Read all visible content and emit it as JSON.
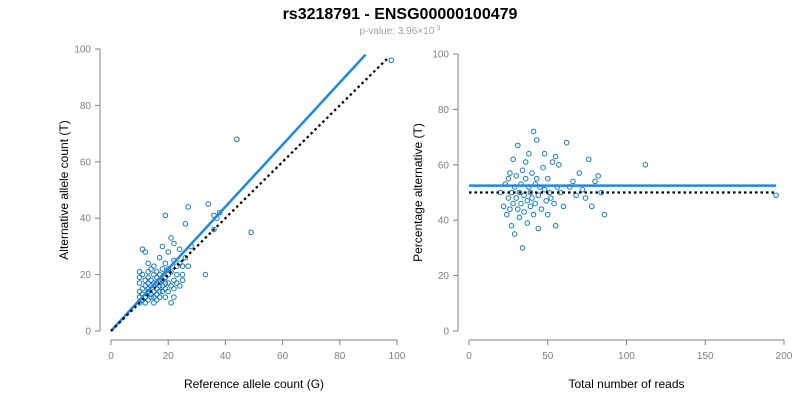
{
  "title": "rs3218791 - ENSG00000100479",
  "subtitle": {
    "prefix": "p-value: 3.96×10",
    "exponent": "-3"
  },
  "colors": {
    "points": "#1a7ab8",
    "fit_line": "#1e88e5",
    "reference_line": "#000000",
    "axis": "#7f7f7f"
  },
  "chart_data": [
    {
      "type": "scatter",
      "xlabel": "Reference allele count (G)",
      "ylabel": "Alternative allele count (T)",
      "xlim": [
        0,
        100
      ],
      "ylim": [
        0,
        100
      ],
      "xticks": [
        0,
        20,
        40,
        60,
        80,
        100
      ],
      "yticks": [
        0,
        20,
        40,
        60,
        80,
        100
      ],
      "grid": false,
      "fit_line": {
        "x": [
          0,
          89
        ],
        "y": [
          0,
          98
        ]
      },
      "reference_line": {
        "x": [
          0,
          97
        ],
        "y": [
          0,
          97
        ]
      },
      "points": [
        [
          10,
          10
        ],
        [
          10,
          12
        ],
        [
          10,
          14
        ],
        [
          10,
          17
        ],
        [
          10,
          19
        ],
        [
          10,
          21
        ],
        [
          11,
          11
        ],
        [
          11,
          13
        ],
        [
          11,
          15
        ],
        [
          11,
          20
        ],
        [
          11,
          29
        ],
        [
          12,
          10
        ],
        [
          12,
          12
        ],
        [
          12,
          16
        ],
        [
          12,
          18
        ],
        [
          12,
          28
        ],
        [
          13,
          11
        ],
        [
          13,
          14
        ],
        [
          13,
          15
        ],
        [
          13,
          17
        ],
        [
          13,
          19
        ],
        [
          13,
          21
        ],
        [
          13,
          24
        ],
        [
          14,
          12
        ],
        [
          14,
          13
        ],
        [
          14,
          16
        ],
        [
          14,
          18
        ],
        [
          14,
          22
        ],
        [
          15,
          10
        ],
        [
          15,
          12
        ],
        [
          15,
          14
        ],
        [
          15,
          17
        ],
        [
          15,
          20
        ],
        [
          15,
          23
        ],
        [
          16,
          11
        ],
        [
          16,
          13
        ],
        [
          16,
          15
        ],
        [
          16,
          17
        ],
        [
          16,
          19
        ],
        [
          16,
          21
        ],
        [
          17,
          12
        ],
        [
          17,
          14
        ],
        [
          17,
          16
        ],
        [
          17,
          18
        ],
        [
          17,
          20
        ],
        [
          17,
          26
        ],
        [
          18,
          14
        ],
        [
          18,
          16
        ],
        [
          18,
          18
        ],
        [
          18,
          22
        ],
        [
          18,
          30
        ],
        [
          19,
          12
        ],
        [
          19,
          15
        ],
        [
          19,
          17
        ],
        [
          19,
          19
        ],
        [
          19,
          24
        ],
        [
          19,
          41
        ],
        [
          20,
          14
        ],
        [
          20,
          17
        ],
        [
          20,
          20
        ],
        [
          20,
          22
        ],
        [
          20,
          28
        ],
        [
          21,
          10
        ],
        [
          21,
          16
        ],
        [
          21,
          21
        ],
        [
          21,
          33
        ],
        [
          22,
          12
        ],
        [
          22,
          15
        ],
        [
          22,
          18
        ],
        [
          22,
          25
        ],
        [
          22,
          31
        ],
        [
          23,
          17
        ],
        [
          23,
          20
        ],
        [
          23,
          23
        ],
        [
          24,
          16
        ],
        [
          24,
          24
        ],
        [
          24,
          29
        ],
        [
          25,
          18
        ],
        [
          25,
          20
        ],
        [
          25,
          23
        ],
        [
          26,
          26
        ],
        [
          26,
          38
        ],
        [
          27,
          23
        ],
        [
          27,
          44
        ],
        [
          28,
          30
        ],
        [
          33,
          20
        ],
        [
          34,
          45
        ],
        [
          36,
          36
        ],
        [
          36,
          41
        ],
        [
          37,
          40
        ],
        [
          38,
          42
        ],
        [
          44,
          68
        ],
        [
          49,
          35
        ],
        [
          98,
          96
        ]
      ]
    },
    {
      "type": "scatter",
      "xlabel": "Total number of reads",
      "ylabel": "Percentage alternative (T)",
      "xlim": [
        0,
        200
      ],
      "ylim": [
        0,
        100
      ],
      "xticks": [
        0,
        50,
        100,
        150,
        200
      ],
      "yticks": [
        0,
        20,
        40,
        60,
        80,
        100
      ],
      "grid": false,
      "fit_line": {
        "x": [
          0,
          195
        ],
        "y": [
          52.5,
          52.5
        ]
      },
      "reference_line": {
        "x": [
          0,
          195
        ],
        "y": [
          50,
          50
        ]
      },
      "points": [
        [
          20,
          50
        ],
        [
          22,
          45
        ],
        [
          23,
          53
        ],
        [
          24,
          42
        ],
        [
          25,
          48
        ],
        [
          25,
          55
        ],
        [
          26,
          57
        ],
        [
          26,
          44
        ],
        [
          27,
          50
        ],
        [
          27,
          38
        ],
        [
          28,
          46
        ],
        [
          28,
          62
        ],
        [
          29,
          52
        ],
        [
          29,
          35
        ],
        [
          30,
          48
        ],
        [
          30,
          56
        ],
        [
          31,
          44
        ],
        [
          31,
          67
        ],
        [
          32,
          50
        ],
        [
          32,
          41
        ],
        [
          33,
          53
        ],
        [
          33,
          46
        ],
        [
          34,
          30
        ],
        [
          34,
          58
        ],
        [
          35,
          49
        ],
        [
          35,
          43
        ],
        [
          36,
          55
        ],
        [
          36,
          61
        ],
        [
          37,
          47
        ],
        [
          37,
          39
        ],
        [
          38,
          52
        ],
        [
          38,
          64
        ],
        [
          39,
          45
        ],
        [
          39,
          50
        ],
        [
          40,
          48
        ],
        [
          40,
          57
        ],
        [
          41,
          72
        ],
        [
          41,
          42
        ],
        [
          42,
          53
        ],
        [
          42,
          46
        ],
        [
          43,
          69
        ],
        [
          43,
          55
        ],
        [
          44,
          49
        ],
        [
          44,
          37
        ],
        [
          45,
          52
        ],
        [
          46,
          44
        ],
        [
          47,
          59
        ],
        [
          48,
          51
        ],
        [
          48,
          64
        ],
        [
          49,
          47
        ],
        [
          50,
          55
        ],
        [
          50,
          42
        ],
        [
          51,
          50
        ],
        [
          52,
          48
        ],
        [
          53,
          61
        ],
        [
          54,
          46
        ],
        [
          55,
          63
        ],
        [
          55,
          38
        ],
        [
          56,
          52
        ],
        [
          57,
          60
        ],
        [
          58,
          50
        ],
        [
          60,
          45
        ],
        [
          62,
          68
        ],
        [
          64,
          52
        ],
        [
          66,
          54
        ],
        [
          68,
          49
        ],
        [
          70,
          57
        ],
        [
          72,
          51
        ],
        [
          74,
          48
        ],
        [
          76,
          62
        ],
        [
          78,
          45
        ],
        [
          80,
          54
        ],
        [
          82,
          56
        ],
        [
          84,
          50
        ],
        [
          86,
          42
        ],
        [
          112,
          60
        ],
        [
          195,
          49
        ]
      ]
    }
  ]
}
